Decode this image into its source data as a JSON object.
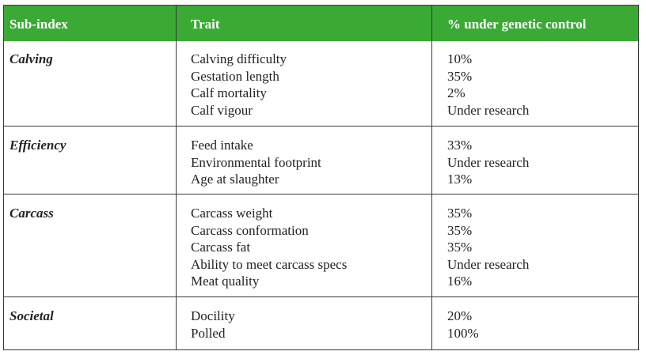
{
  "columns": [
    "Sub-index",
    "Trait",
    "% under genetic control"
  ],
  "groups": [
    {
      "name": "Calving",
      "traits": [
        "Calving difficulty",
        "Gestation length",
        "Calf mortality",
        "Calf vigour"
      ],
      "values": [
        "10%",
        "35%",
        "2%",
        "Under research"
      ]
    },
    {
      "name": "Efficiency",
      "traits": [
        "Feed intake",
        "Environmental footprint",
        "Age at slaughter"
      ],
      "values": [
        "33%",
        "Under research",
        "13%"
      ]
    },
    {
      "name": "Carcass",
      "traits": [
        "Carcass weight",
        "Carcass conformation",
        "Carcass fat",
        "Ability to meet carcass specs",
        "Meat quality"
      ],
      "values": [
        "35%",
        "35%",
        "35%",
        "Under research",
        "16%"
      ]
    },
    {
      "name": "Societal",
      "traits": [
        "Docility",
        "Polled"
      ],
      "values": [
        "20%",
        "100%"
      ]
    }
  ],
  "colors": {
    "header_bg": "#3aaa35",
    "header_text": "#ffffff",
    "rule": "#3a3a3a"
  }
}
